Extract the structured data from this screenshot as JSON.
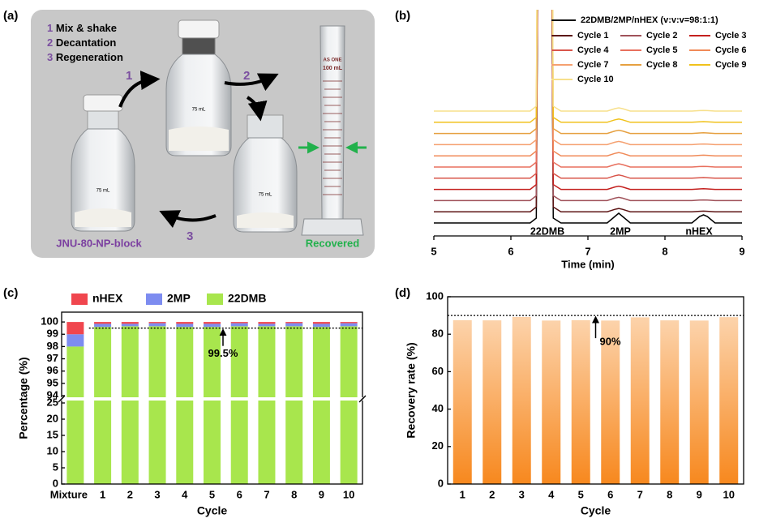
{
  "photo": {
    "panel_label": "(a)",
    "steps": [
      {
        "number": "1",
        "text": "Mix & shake"
      },
      {
        "number": "2",
        "text": "Decantation"
      },
      {
        "number": "3",
        "text": "Regeneration"
      }
    ],
    "adsorbent_label": "JNU-80-NP-block",
    "recovered_label": "Recovered",
    "bottle_volume": "75 mL",
    "cylinder_brand": "AS ONE",
    "cylinder_volume": "100 mL"
  },
  "chart_data": [
    {
      "type": "line",
      "panel_label": "(b)",
      "xlabel": "Time (min)",
      "xlim": [
        5,
        9
      ],
      "xticks": [
        5,
        6,
        7,
        8,
        9
      ],
      "x": [
        5,
        6.25,
        6.33,
        6.38,
        6.43,
        6.5,
        6.55,
        6.65,
        7.25,
        7.35,
        7.4,
        7.45,
        7.55,
        8.35,
        8.45,
        8.5,
        8.55,
        8.65,
        9
      ],
      "peak_labels": [
        "22DMB",
        "2MP",
        "nHEX"
      ],
      "series": [
        {
          "name": "22DMB/2MP/nHEX (v:v:v=98:1:1)",
          "color": "#000000",
          "values": [
            0,
            0,
            3,
            400,
            400,
            400,
            3,
            0,
            0,
            4,
            6,
            4,
            0,
            0,
            4,
            5,
            4,
            0,
            0
          ]
        },
        {
          "name": "Cycle 1",
          "color": "#5c1414",
          "values": [
            0,
            0,
            3,
            400,
            400,
            400,
            3,
            0,
            0,
            1.5,
            2,
            1.5,
            0,
            0,
            0.3,
            0.4,
            0.3,
            0,
            0
          ]
        },
        {
          "name": "Cycle 2",
          "color": "#a0525a",
          "values": [
            0,
            0,
            3,
            400,
            400,
            400,
            3,
            0,
            0,
            1.5,
            2,
            1.5,
            0,
            0,
            0.3,
            0.4,
            0.3,
            0,
            0
          ]
        },
        {
          "name": "Cycle 3",
          "color": "#c4201e",
          "values": [
            0,
            0,
            3,
            400,
            400,
            400,
            3,
            0,
            0,
            1.5,
            2,
            1.5,
            0,
            0,
            0.3,
            0.4,
            0.3,
            0,
            0
          ]
        },
        {
          "name": "Cycle 4",
          "color": "#d9554a",
          "values": [
            0,
            0,
            3,
            400,
            400,
            400,
            3,
            0,
            0,
            1.5,
            2,
            1.5,
            0,
            0,
            0.3,
            0.4,
            0.3,
            0,
            0
          ]
        },
        {
          "name": "Cycle 5",
          "color": "#e8705e",
          "values": [
            0,
            0,
            3,
            400,
            400,
            400,
            3,
            0,
            0,
            1.5,
            2,
            1.5,
            0,
            0,
            0.3,
            0.4,
            0.3,
            0,
            0
          ]
        },
        {
          "name": "Cycle 6",
          "color": "#f08a58",
          "values": [
            0,
            0,
            3,
            400,
            400,
            400,
            3,
            0,
            0,
            1.5,
            2,
            1.5,
            0,
            0,
            0.3,
            0.4,
            0.3,
            0,
            0
          ]
        },
        {
          "name": "Cycle 7",
          "color": "#f5a070",
          "values": [
            0,
            0,
            3,
            400,
            400,
            400,
            3,
            0,
            0,
            1.5,
            2,
            1.5,
            0,
            0,
            0.3,
            0.4,
            0.3,
            0,
            0
          ]
        },
        {
          "name": "Cycle 8",
          "color": "#e6a040",
          "values": [
            0,
            0,
            3,
            400,
            400,
            400,
            3,
            0,
            0,
            1.5,
            2,
            1.5,
            0,
            0,
            0.3,
            0.4,
            0.3,
            0,
            0
          ]
        },
        {
          "name": "Cycle 9",
          "color": "#f0c21c",
          "values": [
            0,
            0,
            3,
            400,
            400,
            400,
            3,
            0,
            0,
            1.5,
            2,
            1.5,
            0,
            0,
            0.3,
            0.4,
            0.3,
            0,
            0
          ]
        },
        {
          "name": "Cycle 10",
          "color": "#f7e08c",
          "values": [
            0,
            0,
            3,
            400,
            400,
            400,
            3,
            0,
            0,
            1.5,
            2,
            1.5,
            0,
            0,
            0.3,
            0.4,
            0.3,
            0,
            0
          ]
        }
      ]
    },
    {
      "type": "stacked_bar",
      "panel_label": "(c)",
      "xlabel": "Cycle",
      "ylabel": "Percentage (%)",
      "categories": [
        "Mixture",
        "1",
        "2",
        "3",
        "4",
        "5",
        "6",
        "7",
        "8",
        "9",
        "10"
      ],
      "ylim": [
        0,
        100.8
      ],
      "ybreak": [
        26,
        93.8
      ],
      "yticks": [
        0,
        5,
        10,
        15,
        20,
        25,
        94,
        95,
        96,
        97,
        98,
        99,
        100
      ],
      "legend": "top",
      "series": [
        {
          "name": "nHEX",
          "color": "#f0464e",
          "values": [
            1,
            0.15,
            0.15,
            0.1,
            0.15,
            0.15,
            0.1,
            0.15,
            0.1,
            0.15,
            0.1
          ]
        },
        {
          "name": "2MP",
          "color": "#7d8cf0",
          "values": [
            1,
            0.25,
            0.2,
            0.25,
            0.25,
            0.25,
            0.25,
            0.2,
            0.25,
            0.25,
            0.25
          ]
        },
        {
          "name": "22DMB",
          "color": "#a8e64d",
          "values": [
            98,
            99.6,
            99.65,
            99.65,
            99.6,
            99.6,
            99.65,
            99.65,
            99.65,
            99.6,
            99.65
          ]
        }
      ],
      "reference": {
        "value": 99.5,
        "label": "99.5%"
      }
    },
    {
      "type": "bar",
      "panel_label": "(d)",
      "xlabel": "Cycle",
      "ylabel": "Recovery rate (%)",
      "categories": [
        "1",
        "2",
        "3",
        "4",
        "5",
        "6",
        "7",
        "8",
        "9",
        "10"
      ],
      "values": [
        87.5,
        87.4,
        89.2,
        87.3,
        87.5,
        87.3,
        89.0,
        87.4,
        87.3,
        89.1
      ],
      "colors": [
        "#fcd3ab",
        "#f7881e"
      ],
      "ylim": [
        0,
        100
      ],
      "yticks": [
        0,
        20,
        40,
        60,
        80,
        100
      ],
      "reference": {
        "value": 90,
        "label": "90%"
      }
    }
  ]
}
